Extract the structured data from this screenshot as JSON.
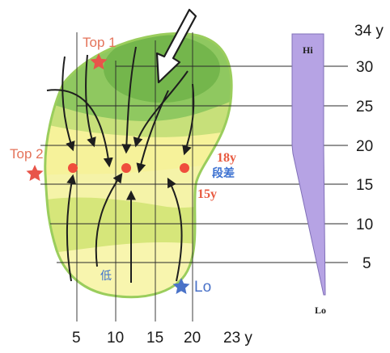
{
  "labels": {
    "top1": "Top 1",
    "top2": "Top 2",
    "lo": "Lo",
    "age_upper": "18y",
    "step": "段差",
    "age_lower": "15y",
    "low": "低"
  },
  "axes": {
    "y_top": "34 y",
    "y_ticks": [
      "5",
      "10",
      "15",
      "20",
      "25",
      "30"
    ],
    "x_ticks": [
      "5",
      "10",
      "15",
      "20"
    ],
    "x_end": "23 y"
  },
  "scale_bar": {
    "hi": "Hi",
    "lo": "Lo"
  },
  "colors": {
    "high_zone": "#8fc860",
    "mid_zone": "#f6f29a",
    "blob_outline": "#9acd5c",
    "point": "#ef4d3c",
    "star_top": "#e8554a",
    "star_lo": "#4a72c8",
    "scale_bar": "#b6a3e4"
  }
}
